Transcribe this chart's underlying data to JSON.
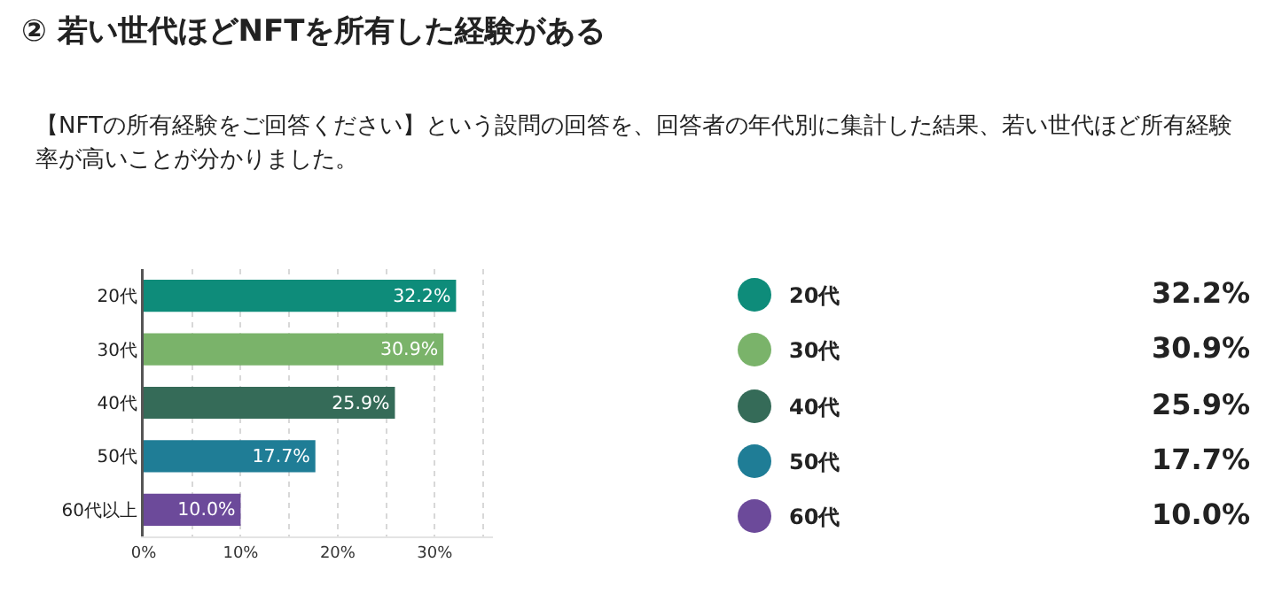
{
  "chart_data": {
    "type": "bar",
    "title": "② 若い世代ほどNFTを所有した経験がある",
    "subtitle": "【NFTの所有経験をご回答ください】という設問の回答を、回答者の年代別に集計した結果、若い世代ほど所有経験率が高いことが分かりました。",
    "orientation": "horizontal",
    "categories": [
      "20代",
      "30代",
      "40代",
      "50代",
      "60代以上"
    ],
    "values": [
      32.2,
      30.9,
      25.9,
      17.7,
      10.0
    ],
    "colors": [
      "#0e8c7a",
      "#7ab36a",
      "#356b58",
      "#1f7d96",
      "#6c4a9a"
    ],
    "value_labels": [
      "32.2%",
      "30.9%",
      "25.9%",
      "17.7%",
      "10.0%"
    ],
    "xlim": [
      0,
      36
    ],
    "xticks": [
      {
        "value": 0,
        "label": "0%"
      },
      {
        "value": 5,
        "label": null
      },
      {
        "value": 10,
        "label": "10%"
      },
      {
        "value": 15,
        "label": null
      },
      {
        "value": 20,
        "label": "20%"
      },
      {
        "value": 25,
        "label": null
      },
      {
        "value": 30,
        "label": "30%"
      },
      {
        "value": 35,
        "label": null
      }
    ],
    "grid": "x",
    "annotations": [
      "20代",
      "32.2%",
      "30代",
      "30.9%",
      "40代",
      "25.9%",
      "50代",
      "17.7%",
      "60代",
      "10.0%"
    ]
  }
}
